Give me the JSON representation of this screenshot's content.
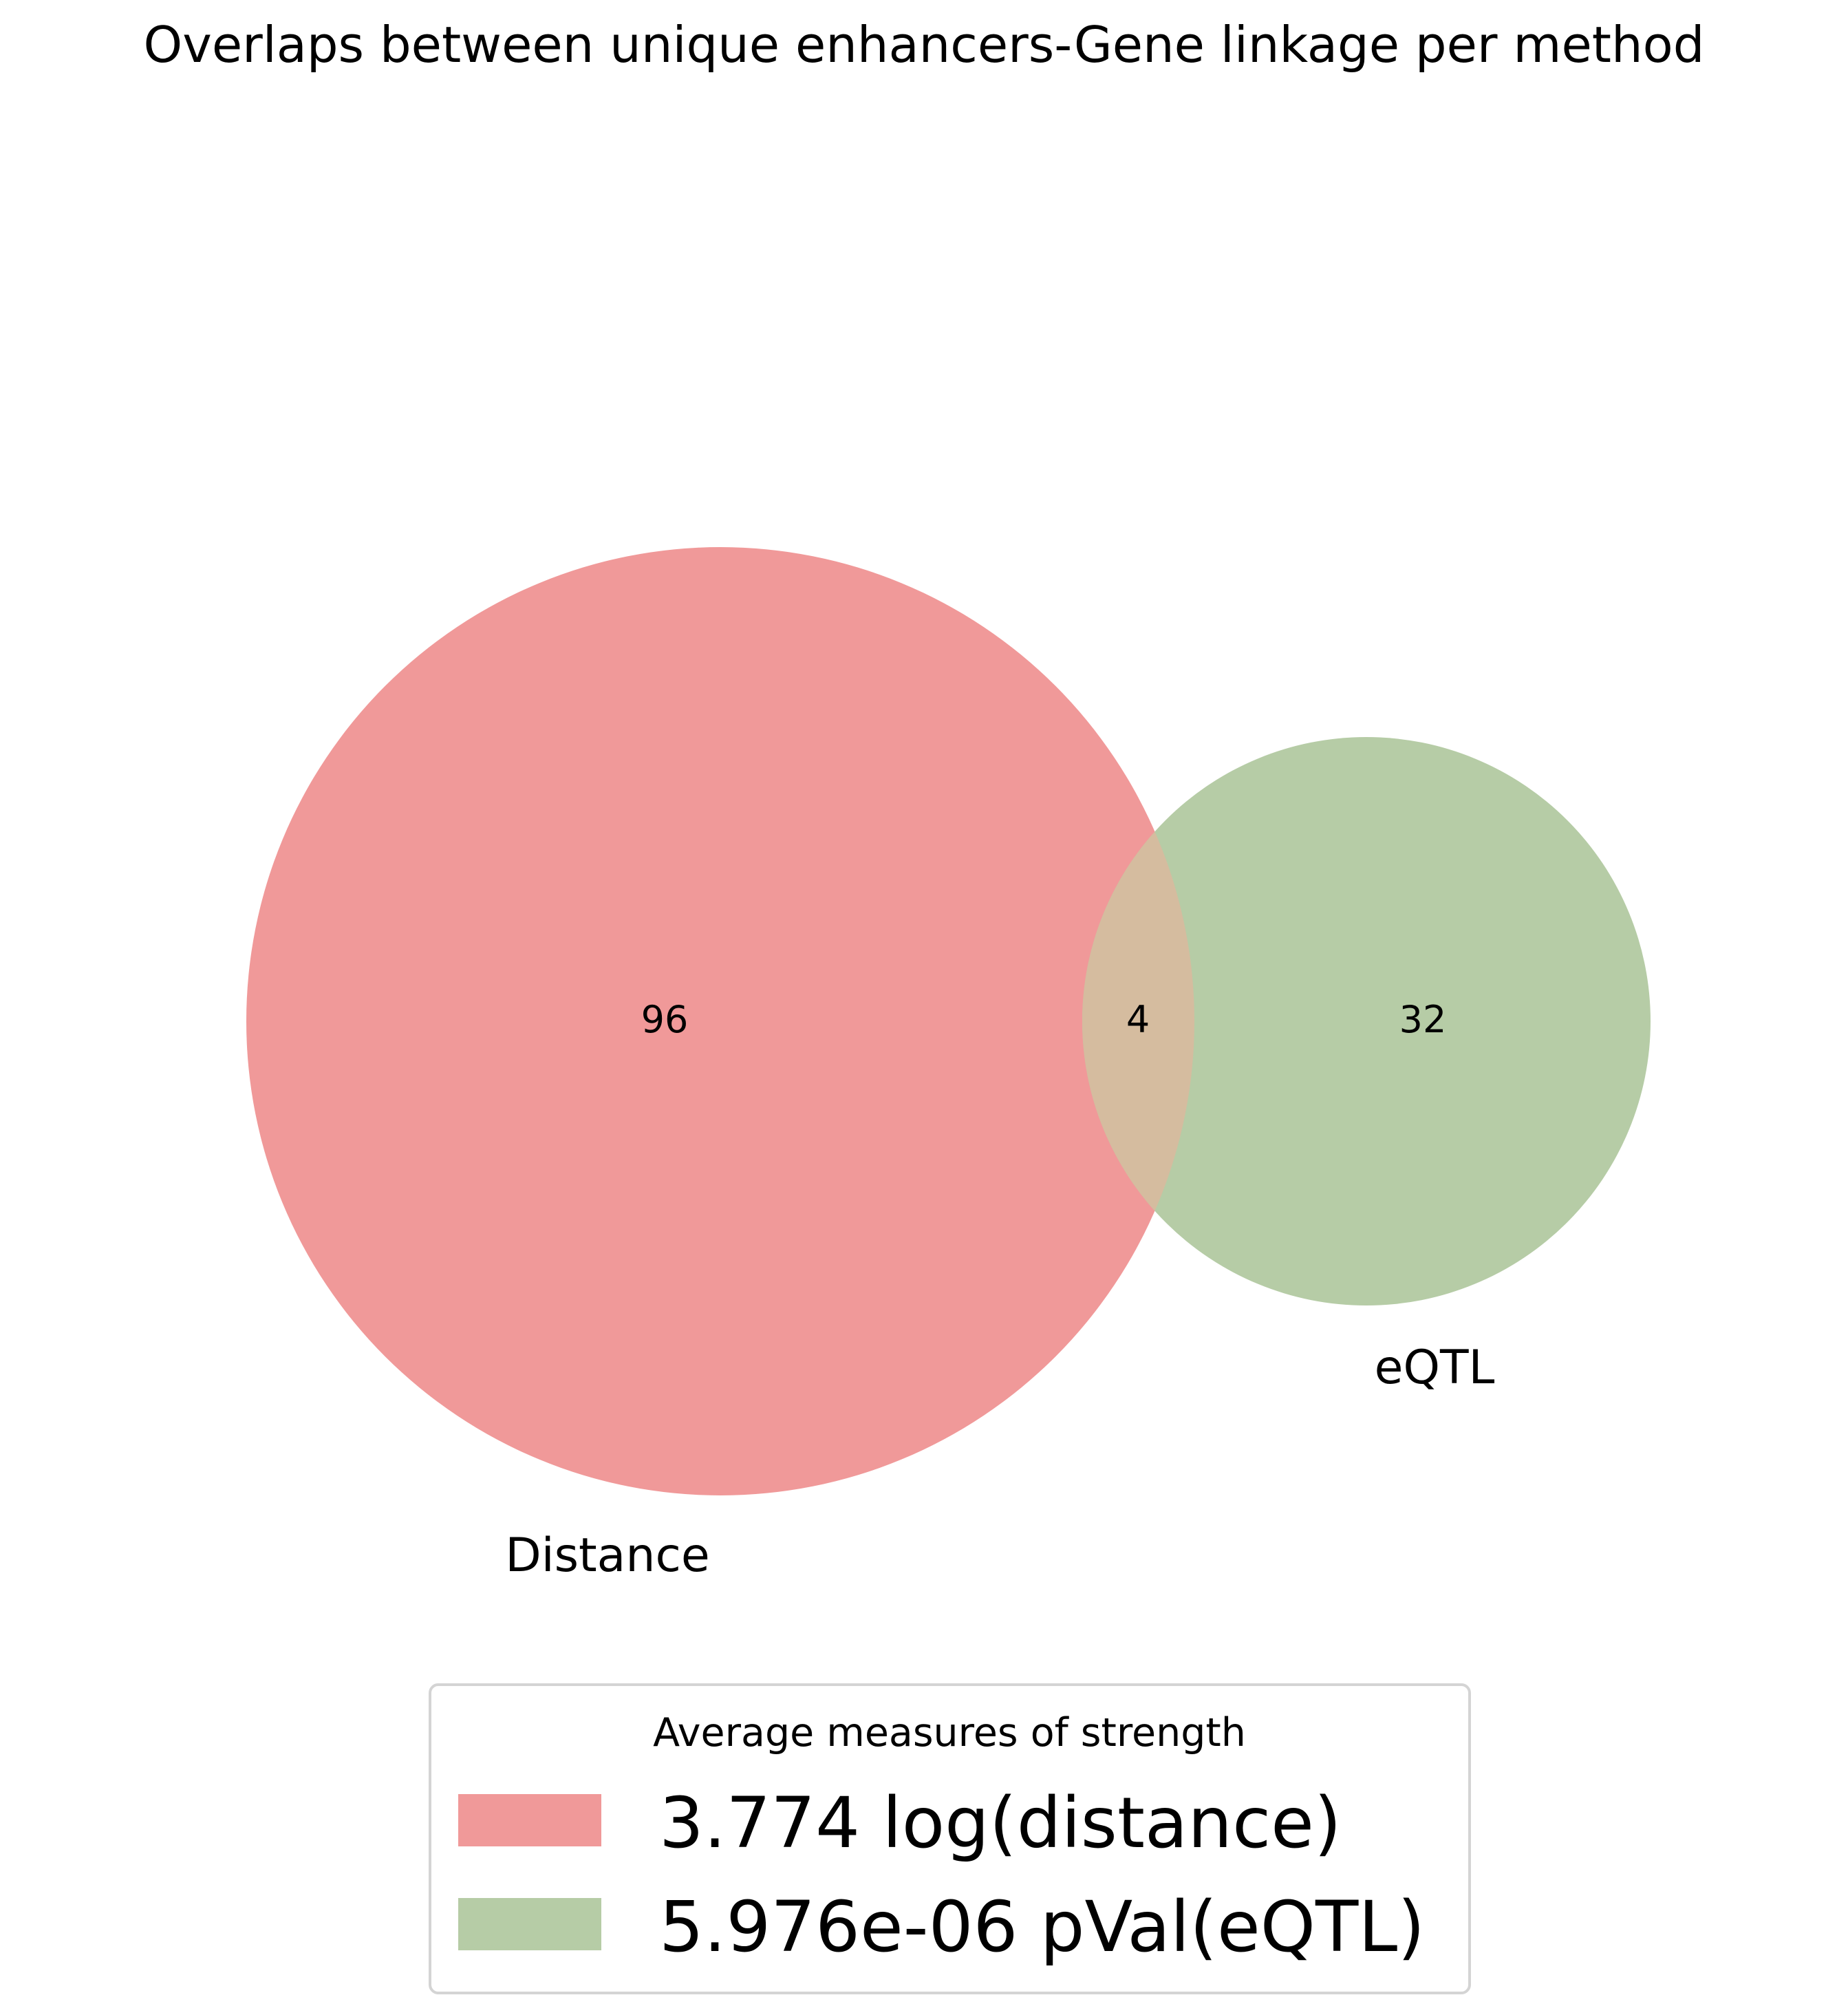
{
  "title": "Overlaps between unique enhancers-Gene linkage per method",
  "chart_data": {
    "type": "venn",
    "sets": [
      {
        "name": "Distance",
        "only_count": "96",
        "color": "#f09999"
      },
      {
        "name": "eQTL",
        "only_count": "32",
        "color": "#b6cca6"
      }
    ],
    "intersection": {
      "count": "4",
      "color": "#d5bc9f"
    }
  },
  "legend": {
    "title": "Average measures of strength",
    "entries": [
      {
        "label": "3.774 log(distance)",
        "color": "#f09999"
      },
      {
        "label": "5.976e-06 pVal(eQTL)",
        "color": "#b6cca6"
      }
    ]
  }
}
